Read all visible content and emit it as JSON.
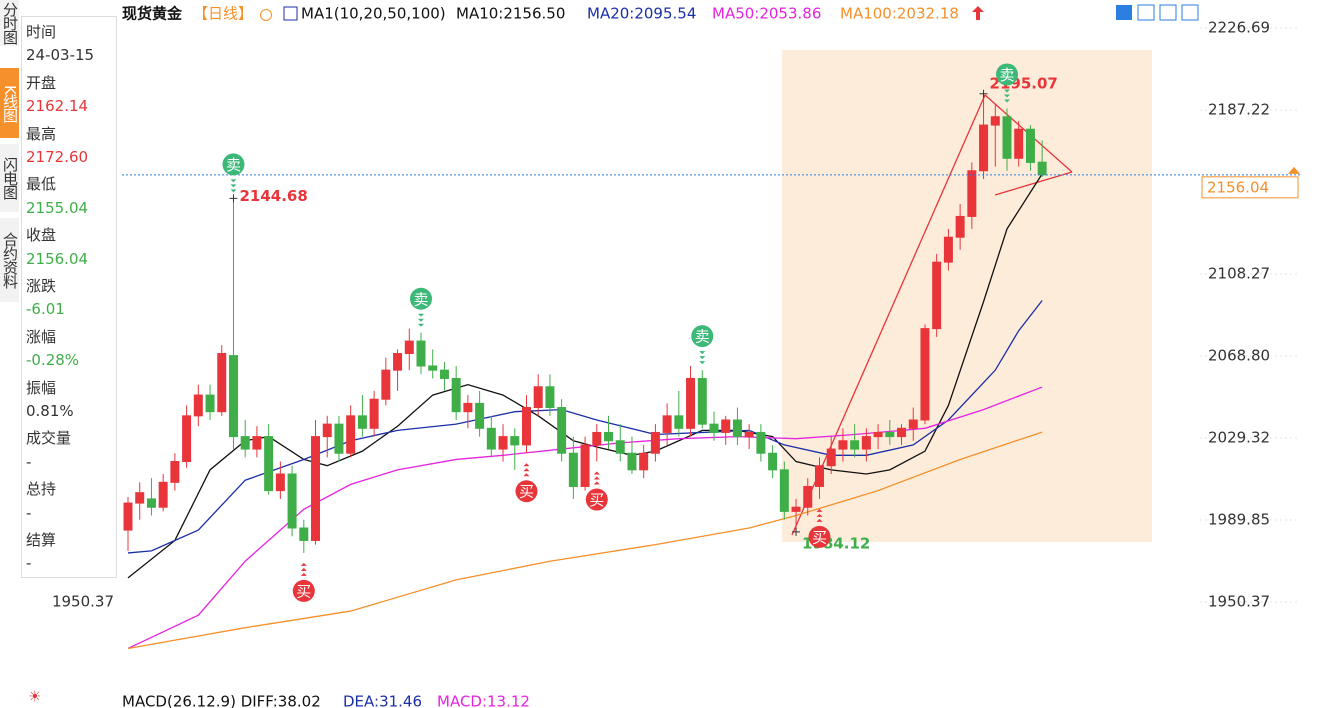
{
  "tabs": [
    "分时图",
    "K线图",
    "闪电图",
    "合约资料"
  ],
  "info": [
    [
      "时间",
      "24-03-15"
    ],
    [
      "开盘",
      "2162.14"
    ],
    [
      "最高",
      "2172.60"
    ],
    [
      "最低",
      "2155.04"
    ],
    [
      "收盘",
      "2156.04"
    ],
    [
      "涨跌",
      "-6.01"
    ],
    [
      "涨幅",
      "-0.28%"
    ],
    [
      "振幅",
      "0.81%"
    ],
    [
      "成交量",
      "-"
    ],
    [
      "总持",
      "-"
    ],
    [
      "结算",
      "-"
    ]
  ],
  "header": {
    "title": "现货黄金",
    "period": "【日线】",
    "ma_setting": "MA1(10,20,50,100)",
    "ma_legend": [
      "MA10:2156.50",
      "MA20:2095.54",
      "MA50:2053.86",
      "MA100:2032.18"
    ]
  },
  "footer": [
    "MACD(26.12.9) DIFF:38.02",
    "DEA:31.46",
    "MACD:13.12"
  ],
  "chart_data": {
    "type": "candlestick",
    "ylim": [
      1908,
      2235.4
    ],
    "yticks": [
      2226.69,
      2187.22,
      2108.27,
      {
        "value": 2068.8,
        "label": "2068.80"
      },
      2029.32,
      1989.85,
      1950.37
    ],
    "up_color": "#e8353a",
    "down_color": "#3fae49",
    "candles": [
      [
        1985,
        2001,
        1975,
        1998
      ],
      [
        1998,
        2008,
        1990,
        2003
      ],
      [
        2000,
        2010,
        1992,
        1996
      ],
      [
        1996,
        2012,
        1994,
        2008
      ],
      [
        2008,
        2022,
        2004,
        2018
      ],
      [
        2018,
        2045,
        2015,
        2040
      ],
      [
        2040,
        2055,
        2035,
        2050
      ],
      [
        2050,
        2055,
        2038,
        2042
      ],
      [
        2042,
        2074,
        2040,
        2070
      ],
      [
        2069,
        2144.68,
        2024,
        2030
      ],
      [
        2030,
        2038,
        2020,
        2024
      ],
      [
        2024,
        2035,
        2020,
        2030
      ],
      [
        2030,
        2036,
        2002,
        2004
      ],
      [
        2004,
        2018,
        2000,
        2012
      ],
      [
        2012,
        2016,
        1982,
        1986
      ],
      [
        1986,
        1990,
        1974,
        1980
      ],
      [
        1980,
        2038,
        1978,
        2030
      ],
      [
        2030,
        2040,
        2020,
        2036
      ],
      [
        2036,
        2040,
        2018,
        2022
      ],
      [
        2022,
        2045,
        2020,
        2040
      ],
      [
        2040,
        2050,
        2030,
        2034
      ],
      [
        2034,
        2052,
        2030,
        2048
      ],
      [
        2048,
        2068,
        2045,
        2062
      ],
      [
        2062,
        2072,
        2052,
        2070
      ],
      [
        2070,
        2082,
        2062,
        2076
      ],
      [
        2076,
        2080,
        2060,
        2064
      ],
      [
        2064,
        2072,
        2058,
        2062
      ],
      [
        2062,
        2066,
        2052,
        2058
      ],
      [
        2058,
        2064,
        2038,
        2042
      ],
      [
        2042,
        2050,
        2034,
        2046
      ],
      [
        2046,
        2052,
        2030,
        2034
      ],
      [
        2034,
        2040,
        2020,
        2024
      ],
      [
        2024,
        2036,
        2018,
        2030
      ],
      [
        2030,
        2034,
        2014,
        2026
      ],
      [
        2026,
        2050,
        2022,
        2044
      ],
      [
        2044,
        2060,
        2040,
        2054
      ],
      [
        2054,
        2060,
        2040,
        2044
      ],
      [
        2044,
        2048,
        2018,
        2022
      ],
      [
        2022,
        2030,
        2000,
        2006
      ],
      [
        2006,
        2030,
        2004,
        2026
      ],
      [
        2026,
        2036,
        2018,
        2032
      ],
      [
        2032,
        2040,
        2024,
        2028
      ],
      [
        2028,
        2036,
        2018,
        2022
      ],
      [
        2022,
        2030,
        2012,
        2014
      ],
      [
        2014,
        2026,
        2010,
        2022
      ],
      [
        2022,
        2036,
        2018,
        2032
      ],
      [
        2032,
        2046,
        2026,
        2040
      ],
      [
        2040,
        2052,
        2030,
        2034
      ],
      [
        2034,
        2064,
        2030,
        2058
      ],
      [
        2058,
        2062,
        2034,
        2036
      ],
      [
        2036,
        2042,
        2028,
        2032
      ],
      [
        2032,
        2040,
        2026,
        2038
      ],
      [
        2038,
        2044,
        2026,
        2030
      ],
      [
        2030,
        2036,
        2024,
        2032
      ],
      [
        2032,
        2036,
        2018,
        2022
      ],
      [
        2022,
        2026,
        2010,
        2014
      ],
      [
        2014,
        2018,
        1990,
        1994
      ],
      [
        1994,
        2000,
        1984.12,
        1996
      ],
      [
        1996,
        2010,
        1992,
        2006
      ],
      [
        2006,
        2020,
        2000,
        2016
      ],
      [
        2016,
        2030,
        2012,
        2024
      ],
      [
        2024,
        2034,
        2018,
        2028
      ],
      [
        2028,
        2036,
        2020,
        2024
      ],
      [
        2024,
        2034,
        2018,
        2030
      ],
      [
        2030,
        2036,
        2024,
        2032
      ],
      [
        2032,
        2038,
        2026,
        2030
      ],
      [
        2030,
        2036,
        2026,
        2034
      ],
      [
        2034,
        2044,
        2028,
        2038
      ],
      [
        2038,
        2084,
        2036,
        2082
      ],
      [
        2082,
        2118,
        2078,
        2114
      ],
      [
        2114,
        2130,
        2110,
        2126
      ],
      [
        2126,
        2142,
        2120,
        2136
      ],
      [
        2136,
        2162,
        2130,
        2158
      ],
      [
        2158,
        2195.07,
        2154,
        2180
      ],
      [
        2180,
        2190,
        2160,
        2184
      ],
      [
        2184,
        2188,
        2158,
        2164
      ],
      [
        2164,
        2182,
        2160,
        2178
      ],
      [
        2178,
        2180,
        2158,
        2162
      ],
      [
        2162.14,
        2172.6,
        2155.04,
        2156.04
      ]
    ],
    "series": [
      {
        "color": "#111111",
        "x": [
          0,
          4,
          7,
          10,
          12,
          15,
          17,
          20,
          23,
          26,
          29,
          32,
          35,
          38,
          40,
          43,
          45,
          49,
          52,
          55,
          57,
          60,
          63,
          65,
          68,
          70,
          73,
          75,
          78
        ],
        "values": [
          1962,
          1980,
          2014,
          2028,
          2030,
          2019,
          2016,
          2023,
          2035,
          2050,
          2055,
          2050,
          2040,
          2028,
          2025,
          2021,
          2023,
          2033,
          2033,
          2030,
          2018,
          2014,
          2012,
          2014,
          2023,
          2045,
          2095,
          2130,
          2156.5
        ]
      },
      {
        "color": "#1a2fa8",
        "x": [
          0,
          2,
          6,
          10,
          15,
          19,
          23,
          28,
          33,
          37,
          40,
          45,
          49,
          53,
          56,
          60,
          63,
          67,
          70,
          74,
          76,
          78
        ],
        "values": [
          1974,
          1975,
          1985,
          2009,
          2019,
          2028,
          2033,
          2036,
          2042,
          2043,
          2038,
          2031,
          2032,
          2033,
          2026,
          2021,
          2021,
          2026,
          2038,
          2062,
          2081,
          2095.54
        ]
      },
      {
        "color": "#e524e0",
        "x": [
          0,
          6,
          10,
          15,
          19,
          23,
          28,
          32,
          37,
          42,
          47,
          52,
          57,
          62,
          68,
          73,
          78
        ],
        "values": [
          1928,
          1944,
          1970,
          1995,
          2007,
          2014,
          2019,
          2021,
          2024,
          2027,
          2029,
          2030,
          2029,
          2031,
          2034,
          2043,
          2053.86
        ]
      },
      {
        "color": "#f5902a",
        "x": [
          0,
          10,
          19,
          28,
          36,
          45,
          53,
          57,
          64,
          71,
          78
        ],
        "values": [
          1928,
          1938,
          1946,
          1961,
          1970,
          1978,
          1986,
          1992,
          2004,
          2019,
          2032.18
        ]
      }
    ],
    "sell_signals": {
      "label": "卖",
      "candles": [
        9,
        25,
        49,
        75
      ]
    },
    "buy_signals": {
      "label": "买",
      "candles": [
        15,
        34,
        40,
        59
      ]
    }
  }
}
